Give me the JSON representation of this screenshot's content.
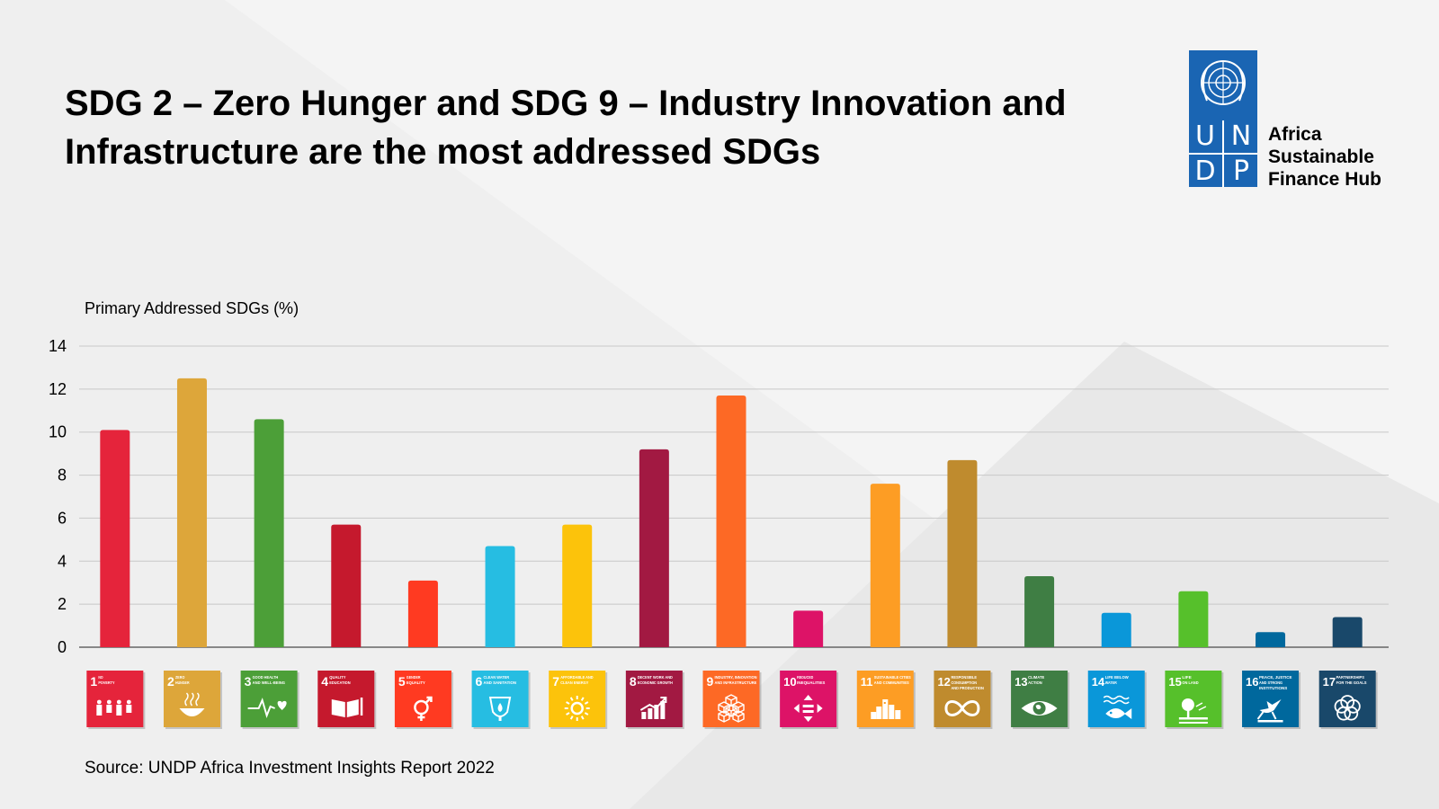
{
  "title": "SDG 2 – Zero Hunger and SDG 9 – Industry Innovation and Infrastructure are the most addressed SDGs",
  "logo": {
    "letters": [
      "U",
      "N",
      "D",
      "P"
    ],
    "hub_lines": [
      "Africa",
      "Sustainable",
      "Finance Hub"
    ],
    "color": "#1a65b3"
  },
  "source": "Source: UNDP Africa Investment Insights Report 2022",
  "chart_data": {
    "type": "bar",
    "title": "",
    "ylabel": "Primary Addressed SDGs (%)",
    "xlabel": "",
    "ylim": [
      0,
      14
    ],
    "yticks": [
      0,
      2,
      4,
      6,
      8,
      10,
      12,
      14
    ],
    "grid": true,
    "categories": [
      "1",
      "2",
      "3",
      "4",
      "5",
      "6",
      "7",
      "8",
      "9",
      "10",
      "11",
      "12",
      "13",
      "14",
      "15",
      "16",
      "17"
    ],
    "values": [
      10.1,
      12.5,
      10.6,
      5.7,
      3.1,
      4.7,
      5.7,
      9.2,
      11.7,
      1.7,
      7.6,
      8.7,
      3.3,
      1.6,
      2.6,
      0.7,
      1.4
    ],
    "colors": [
      "#e5243b",
      "#dda63a",
      "#4c9f38",
      "#c5192d",
      "#ff3a21",
      "#26bde2",
      "#fcc30b",
      "#a21942",
      "#fd6925",
      "#dd1367",
      "#fd9d24",
      "#bf8b2e",
      "#3f7e44",
      "#0a97d9",
      "#56c02b",
      "#00689d",
      "#19486a"
    ],
    "icons": [
      {
        "num": "1",
        "lines": [
          "NO",
          "POVERTY"
        ],
        "icon": "family-icon"
      },
      {
        "num": "2",
        "lines": [
          "ZERO",
          "HUNGER"
        ],
        "icon": "bowl-icon"
      },
      {
        "num": "3",
        "lines": [
          "GOOD HEALTH",
          "AND WELL-BEING"
        ],
        "icon": "heartbeat-icon"
      },
      {
        "num": "4",
        "lines": [
          "QUALITY",
          "EDUCATION"
        ],
        "icon": "book-icon"
      },
      {
        "num": "5",
        "lines": [
          "GENDER",
          "EQUALITY"
        ],
        "icon": "gender-icon"
      },
      {
        "num": "6",
        "lines": [
          "CLEAN WATER",
          "AND SANITATION"
        ],
        "icon": "water-drop-icon"
      },
      {
        "num": "7",
        "lines": [
          "AFFORDABLE AND",
          "CLEAN ENERGY"
        ],
        "icon": "sun-icon"
      },
      {
        "num": "8",
        "lines": [
          "DECENT WORK AND",
          "ECONOMIC GROWTH"
        ],
        "icon": "growth-chart-icon"
      },
      {
        "num": "9",
        "lines": [
          "INDUSTRY, INNOVATION",
          "AND INFRASTRUCTURE"
        ],
        "icon": "cubes-icon"
      },
      {
        "num": "10",
        "lines": [
          "REDUCED",
          "INEQUALITIES"
        ],
        "icon": "equal-arrows-icon"
      },
      {
        "num": "11",
        "lines": [
          "SUSTAINABLE CITIES",
          "AND COMMUNITIES"
        ],
        "icon": "city-icon"
      },
      {
        "num": "12",
        "lines": [
          "RESPONSIBLE",
          "CONSUMPTION",
          "AND PRODUCTION"
        ],
        "icon": "infinity-icon"
      },
      {
        "num": "13",
        "lines": [
          "CLIMATE",
          "ACTION"
        ],
        "icon": "eye-globe-icon"
      },
      {
        "num": "14",
        "lines": [
          "LIFE BELOW",
          "WATER"
        ],
        "icon": "fish-icon"
      },
      {
        "num": "15",
        "lines": [
          "LIFE",
          "ON LAND"
        ],
        "icon": "tree-icon"
      },
      {
        "num": "16",
        "lines": [
          "PEACE, JUSTICE",
          "AND STRONG",
          "INSTITUTIONS"
        ],
        "icon": "dove-icon"
      },
      {
        "num": "17",
        "lines": [
          "PARTNERSHIPS",
          "FOR THE GOALS"
        ],
        "icon": "flower-rings-icon"
      }
    ]
  }
}
